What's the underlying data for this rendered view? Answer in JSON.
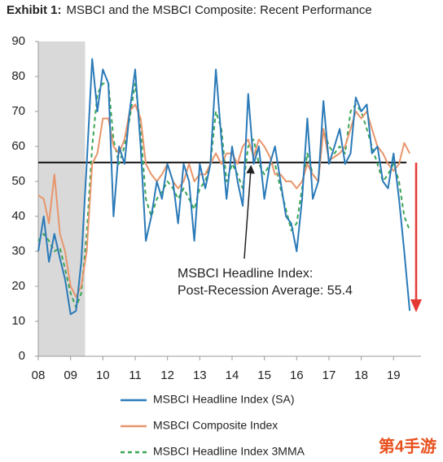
{
  "chart_data": {
    "type": "line",
    "title_label": "Exhibit 1:",
    "title": "MSBCI and the MSBCI Composite: Recent Performance",
    "x": [
      2008,
      2008.17,
      2008.33,
      2008.5,
      2008.67,
      2008.83,
      2009,
      2009.17,
      2009.33,
      2009.5,
      2009.67,
      2009.83,
      2010,
      2010.17,
      2010.33,
      2010.5,
      2010.67,
      2010.83,
      2011,
      2011.17,
      2011.33,
      2011.5,
      2011.67,
      2011.83,
      2012,
      2012.17,
      2012.33,
      2012.5,
      2012.67,
      2012.83,
      2013,
      2013.17,
      2013.33,
      2013.5,
      2013.67,
      2013.83,
      2014,
      2014.17,
      2014.33,
      2014.5,
      2014.67,
      2014.83,
      2015,
      2015.17,
      2015.33,
      2015.5,
      2015.67,
      2015.83,
      2016,
      2016.17,
      2016.33,
      2016.5,
      2016.67,
      2016.83,
      2017,
      2017.17,
      2017.33,
      2017.5,
      2017.67,
      2017.83,
      2018,
      2018.17,
      2018.33,
      2018.5,
      2018.67,
      2018.83,
      2019,
      2019.17,
      2019.33,
      2019.5
    ],
    "series": [
      {
        "name": "MSBCI Headline Index (SA)",
        "color": "#2a7ab8",
        "dashed": false,
        "values": [
          30,
          40,
          27,
          35,
          28,
          22,
          12,
          13,
          27,
          55,
          85,
          70,
          82,
          78,
          40,
          60,
          55,
          70,
          82,
          60,
          33,
          40,
          50,
          45,
          55,
          50,
          38,
          55,
          50,
          33,
          55,
          48,
          55,
          82,
          62,
          45,
          60,
          50,
          43,
          75,
          55,
          60,
          45,
          55,
          60,
          50,
          40,
          38,
          30,
          45,
          68,
          45,
          50,
          73,
          55,
          60,
          65,
          55,
          58,
          74,
          70,
          72,
          58,
          60,
          50,
          48,
          58,
          45,
          30,
          13
        ]
      },
      {
        "name": "MSBCI Composite Index",
        "color": "#e8956b",
        "dashed": false,
        "values": [
          46,
          45,
          38,
          52,
          35,
          30,
          20,
          17,
          20,
          30,
          55,
          58,
          68,
          68,
          60,
          58,
          62,
          70,
          72,
          68,
          55,
          52,
          50,
          52,
          55,
          50,
          48,
          50,
          55,
          50,
          52,
          52,
          55,
          58,
          55,
          58,
          58,
          55,
          60,
          62,
          57,
          62,
          60,
          57,
          52,
          52,
          50,
          50,
          48,
          50,
          55,
          52,
          50,
          65,
          56,
          57,
          58,
          60,
          65,
          70,
          68,
          70,
          65,
          60,
          58,
          55,
          53,
          55,
          61,
          58
        ]
      },
      {
        "name": "MSBCI Headline Index 3MMA",
        "color": "#3aa655",
        "dashed": true,
        "values": [
          33,
          35,
          33,
          30,
          31,
          25,
          18,
          14,
          18,
          35,
          60,
          75,
          78,
          78,
          62,
          55,
          60,
          68,
          78,
          65,
          45,
          40,
          45,
          47,
          50,
          48,
          45,
          48,
          45,
          42,
          48,
          50,
          55,
          70,
          65,
          50,
          55,
          52,
          48,
          60,
          62,
          55,
          52,
          55,
          55,
          48,
          42,
          36,
          38,
          48,
          58,
          52,
          50,
          65,
          60,
          58,
          60,
          58,
          70,
          72,
          70,
          65,
          60,
          55,
          50,
          52,
          55,
          50,
          40,
          36
        ]
      }
    ],
    "xlim": [
      2008,
      2019.85
    ],
    "xticks": [
      {
        "value": 2008,
        "label": "08"
      },
      {
        "value": 2009,
        "label": "09"
      },
      {
        "value": 2010,
        "label": "10"
      },
      {
        "value": 2011,
        "label": "11"
      },
      {
        "value": 2012,
        "label": "12"
      },
      {
        "value": 2013,
        "label": "13"
      },
      {
        "value": 2014,
        "label": "14"
      },
      {
        "value": 2015,
        "label": "15"
      },
      {
        "value": 2016,
        "label": "16"
      },
      {
        "value": 2017,
        "label": "17"
      },
      {
        "value": 2018,
        "label": "18"
      },
      {
        "value": 2019,
        "label": "19"
      }
    ],
    "ylim": [
      0,
      90
    ],
    "yticks": [
      0,
      10,
      20,
      30,
      40,
      50,
      60,
      70,
      80,
      90
    ],
    "shade_x": [
      2008,
      2009.45
    ],
    "shade_color": "#d9d9d9",
    "reference_line": 55.4,
    "reference_end": 2019.4,
    "annotation": [
      "MSBCI Headline Index:",
      "Post-Recession Average: 55.4"
    ],
    "watermark": "第4手游"
  }
}
